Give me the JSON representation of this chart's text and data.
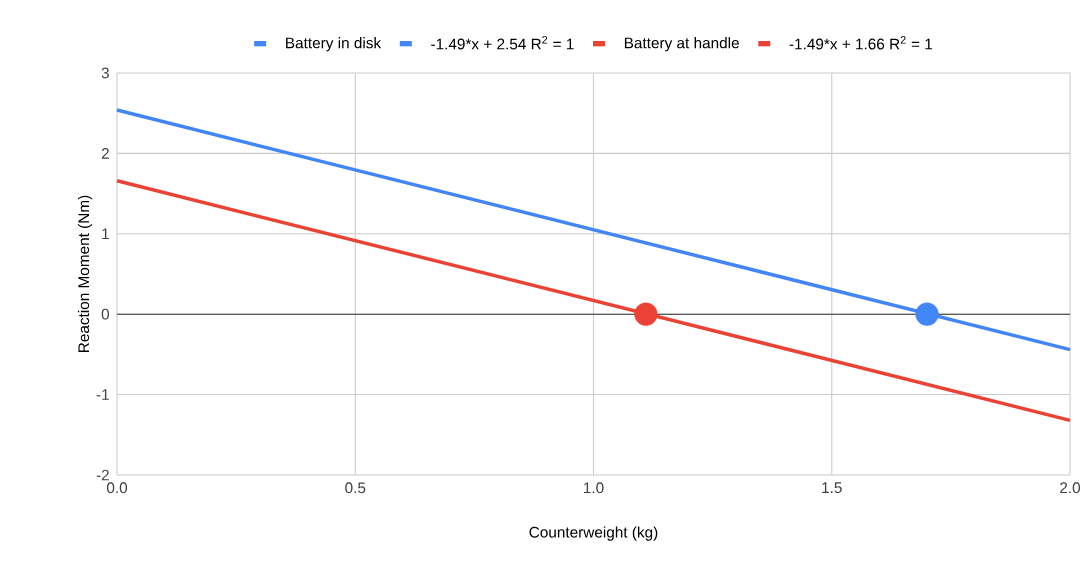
{
  "chart_data": {
    "type": "line",
    "xlabel": "Counterweight (kg)",
    "ylabel": "Reaction Moment (Nm)",
    "series": [
      {
        "name": "Battery in disk",
        "type": "scatter",
        "color": "#4285f4",
        "x": [
          1.7
        ],
        "values": [
          0
        ],
        "marker": "circle"
      },
      {
        "name": "-1.49*x + 2.54 R$^{2}$ = 1",
        "color": "#4285f4",
        "x": [
          0,
          2
        ],
        "values": [
          2.54,
          -0.44
        ]
      },
      {
        "name": "Battery at handle",
        "type": "scatter",
        "color": "#ea4335",
        "x": [
          1.11
        ],
        "values": [
          0
        ],
        "marker": "circle"
      },
      {
        "name": "-1.49*x + 1.66 R$^{2}$ = 1",
        "color": "#ea4335",
        "x": [
          0,
          2
        ],
        "values": [
          1.66,
          -1.32
        ]
      }
    ],
    "xlim": [
      0,
      2
    ],
    "xticks": [
      {
        "value": 0,
        "label": "0.0"
      },
      0.5,
      {
        "value": 1,
        "label": "1.0"
      },
      1.5,
      {
        "value": 2,
        "label": "2.0"
      }
    ],
    "ylim": [
      -2,
      3
    ],
    "yticks": [
      -2,
      -1,
      0,
      1,
      2,
      3
    ],
    "grid": true,
    "legend": "top"
  }
}
